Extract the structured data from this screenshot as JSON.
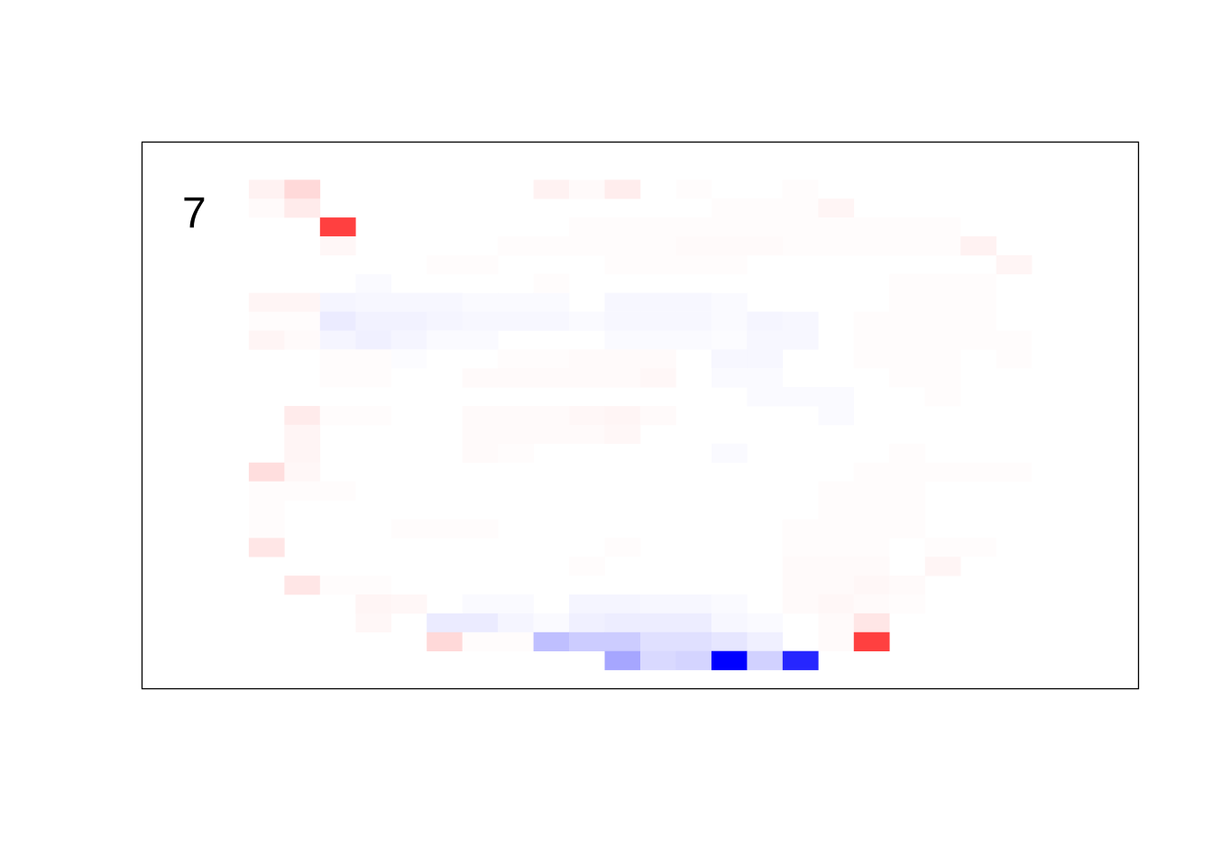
{
  "chart_data": {
    "type": "heatmap",
    "panel_label": "7",
    "n_cols": 28,
    "n_rows": 29,
    "value_range": [
      -1,
      1
    ],
    "colors": {
      "negative": "#0000ff",
      "zero": "#ffffff",
      "positive": "#ff0000"
    },
    "grid": false,
    "cells": [
      [
        3,
        2,
        0.05
      ],
      [
        4,
        2,
        0.15
      ],
      [
        11,
        2,
        0.05
      ],
      [
        12,
        2,
        0.02
      ],
      [
        13,
        2,
        0.07
      ],
      [
        15,
        2,
        0.01
      ],
      [
        18,
        2,
        0.01
      ],
      [
        3,
        3,
        0.02
      ],
      [
        4,
        3,
        0.08
      ],
      [
        16,
        3,
        0.01
      ],
      [
        17,
        3,
        0.01
      ],
      [
        18,
        3,
        0.01
      ],
      [
        19,
        3,
        0.04
      ],
      [
        5,
        4,
        0.75
      ],
      [
        12,
        4,
        0.01
      ],
      [
        13,
        4,
        0.01
      ],
      [
        14,
        4,
        0.01
      ],
      [
        15,
        4,
        0.01
      ],
      [
        16,
        4,
        0.01
      ],
      [
        17,
        4,
        0.01
      ],
      [
        18,
        4,
        0.01
      ],
      [
        19,
        4,
        0.01
      ],
      [
        20,
        4,
        0.01
      ],
      [
        21,
        4,
        0.01
      ],
      [
        22,
        4,
        0.01
      ],
      [
        5,
        5,
        0.03
      ],
      [
        10,
        5,
        0.01
      ],
      [
        11,
        5,
        0.01
      ],
      [
        12,
        5,
        0.01
      ],
      [
        13,
        5,
        0.01
      ],
      [
        14,
        5,
        0.01
      ],
      [
        15,
        5,
        0.02
      ],
      [
        16,
        5,
        0.02
      ],
      [
        17,
        5,
        0.02
      ],
      [
        18,
        5,
        0.01
      ],
      [
        19,
        5,
        0.01
      ],
      [
        20,
        5,
        0.01
      ],
      [
        21,
        5,
        0.01
      ],
      [
        22,
        5,
        0.01
      ],
      [
        23,
        5,
        0.05
      ],
      [
        8,
        6,
        0.01
      ],
      [
        9,
        6,
        0.01
      ],
      [
        13,
        6,
        0.01
      ],
      [
        14,
        6,
        0.01
      ],
      [
        15,
        6,
        0.01
      ],
      [
        16,
        6,
        0.01
      ],
      [
        24,
        6,
        0.04
      ],
      [
        6,
        7,
        -0.02
      ],
      [
        11,
        7,
        0.01
      ],
      [
        21,
        7,
        0.01
      ],
      [
        22,
        7,
        0.01
      ],
      [
        23,
        7,
        0.01
      ],
      [
        3,
        8,
        0.04
      ],
      [
        4,
        8,
        0.04
      ],
      [
        5,
        8,
        -0.04
      ],
      [
        6,
        8,
        -0.03
      ],
      [
        7,
        8,
        -0.03
      ],
      [
        8,
        8,
        -0.03
      ],
      [
        9,
        8,
        -0.02
      ],
      [
        10,
        8,
        -0.02
      ],
      [
        11,
        8,
        -0.02
      ],
      [
        13,
        8,
        -0.03
      ],
      [
        14,
        8,
        -0.03
      ],
      [
        15,
        8,
        -0.03
      ],
      [
        16,
        8,
        -0.02
      ],
      [
        21,
        8,
        0.01
      ],
      [
        22,
        8,
        0.01
      ],
      [
        23,
        8,
        0.01
      ],
      [
        3,
        9,
        0.01
      ],
      [
        4,
        9,
        0.01
      ],
      [
        5,
        9,
        -0.08
      ],
      [
        6,
        9,
        -0.05
      ],
      [
        7,
        9,
        -0.05
      ],
      [
        8,
        9,
        -0.04
      ],
      [
        9,
        9,
        -0.03
      ],
      [
        10,
        9,
        -0.03
      ],
      [
        11,
        9,
        -0.03
      ],
      [
        12,
        9,
        -0.02
      ],
      [
        13,
        9,
        -0.03
      ],
      [
        14,
        9,
        -0.03
      ],
      [
        15,
        9,
        -0.03
      ],
      [
        16,
        9,
        -0.02
      ],
      [
        17,
        9,
        -0.04
      ],
      [
        18,
        9,
        -0.03
      ],
      [
        20,
        9,
        0.01
      ],
      [
        21,
        9,
        0.01
      ],
      [
        22,
        9,
        0.01
      ],
      [
        23,
        9,
        0.01
      ],
      [
        3,
        10,
        0.04
      ],
      [
        4,
        10,
        0.02
      ],
      [
        5,
        10,
        -0.04
      ],
      [
        6,
        10,
        -0.06
      ],
      [
        7,
        10,
        -0.04
      ],
      [
        8,
        10,
        -0.02
      ],
      [
        9,
        10,
        -0.02
      ],
      [
        13,
        10,
        -0.02
      ],
      [
        14,
        10,
        -0.02
      ],
      [
        15,
        10,
        -0.02
      ],
      [
        16,
        10,
        -0.01
      ],
      [
        17,
        10,
        -0.03
      ],
      [
        18,
        10,
        -0.03
      ],
      [
        20,
        10,
        0.01
      ],
      [
        21,
        10,
        0.01
      ],
      [
        22,
        10,
        0.01
      ],
      [
        23,
        10,
        0.01
      ],
      [
        24,
        10,
        0.01
      ],
      [
        5,
        11,
        0.01
      ],
      [
        6,
        11,
        0.01
      ],
      [
        7,
        11,
        -0.01
      ],
      [
        10,
        11,
        0.01
      ],
      [
        11,
        11,
        0.01
      ],
      [
        12,
        11,
        0.02
      ],
      [
        13,
        11,
        0.02
      ],
      [
        14,
        11,
        0.02
      ],
      [
        16,
        11,
        -0.03
      ],
      [
        17,
        11,
        -0.03
      ],
      [
        20,
        11,
        0.01
      ],
      [
        21,
        11,
        0.01
      ],
      [
        22,
        11,
        0.01
      ],
      [
        24,
        11,
        0.01
      ],
      [
        5,
        12,
        0.01
      ],
      [
        6,
        12,
        0.01
      ],
      [
        9,
        12,
        0.02
      ],
      [
        10,
        12,
        0.02
      ],
      [
        11,
        12,
        0.02
      ],
      [
        12,
        12,
        0.02
      ],
      [
        13,
        12,
        0.02
      ],
      [
        14,
        12,
        0.03
      ],
      [
        16,
        12,
        -0.02
      ],
      [
        17,
        12,
        -0.02
      ],
      [
        21,
        12,
        0.01
      ],
      [
        22,
        12,
        0.01
      ],
      [
        17,
        13,
        -0.02
      ],
      [
        18,
        13,
        -0.02
      ],
      [
        19,
        13,
        -0.02
      ],
      [
        22,
        13,
        0.01
      ],
      [
        4,
        14,
        0.08
      ],
      [
        5,
        14,
        0.01
      ],
      [
        6,
        14,
        0.01
      ],
      [
        9,
        14,
        0.02
      ],
      [
        10,
        14,
        0.02
      ],
      [
        11,
        14,
        0.02
      ],
      [
        12,
        14,
        0.03
      ],
      [
        13,
        14,
        0.04
      ],
      [
        14,
        14,
        0.02
      ],
      [
        19,
        14,
        -0.02
      ],
      [
        4,
        15,
        0.04
      ],
      [
        9,
        15,
        0.02
      ],
      [
        10,
        15,
        0.02
      ],
      [
        11,
        15,
        0.02
      ],
      [
        12,
        15,
        0.02
      ],
      [
        13,
        15,
        0.03
      ],
      [
        4,
        16,
        0.04
      ],
      [
        9,
        16,
        0.02
      ],
      [
        10,
        16,
        0.01
      ],
      [
        16,
        16,
        -0.02
      ],
      [
        21,
        16,
        0.01
      ],
      [
        3,
        17,
        0.13
      ],
      [
        4,
        17,
        0.03
      ],
      [
        20,
        17,
        0.01
      ],
      [
        21,
        17,
        0.01
      ],
      [
        22,
        17,
        0.01
      ],
      [
        23,
        17,
        0.01
      ],
      [
        24,
        17,
        0.01
      ],
      [
        3,
        18,
        0.01
      ],
      [
        4,
        18,
        0.01
      ],
      [
        5,
        18,
        0.01
      ],
      [
        19,
        18,
        0.01
      ],
      [
        20,
        18,
        0.01
      ],
      [
        21,
        18,
        0.01
      ],
      [
        3,
        19,
        0.01
      ],
      [
        19,
        19,
        0.01
      ],
      [
        20,
        19,
        0.01
      ],
      [
        21,
        19,
        0.01
      ],
      [
        3,
        20,
        0.01
      ],
      [
        7,
        20,
        0.01
      ],
      [
        8,
        20,
        0.01
      ],
      [
        9,
        20,
        0.01
      ],
      [
        18,
        20,
        0.01
      ],
      [
        19,
        20,
        0.01
      ],
      [
        20,
        20,
        0.01
      ],
      [
        21,
        20,
        0.01
      ],
      [
        3,
        21,
        0.1
      ],
      [
        13,
        21,
        0.01
      ],
      [
        18,
        21,
        0.01
      ],
      [
        19,
        21,
        0.01
      ],
      [
        20,
        21,
        0.01
      ],
      [
        22,
        21,
        0.01
      ],
      [
        23,
        21,
        0.01
      ],
      [
        12,
        22,
        0.01
      ],
      [
        18,
        22,
        0.02
      ],
      [
        19,
        22,
        0.02
      ],
      [
        20,
        22,
        0.02
      ],
      [
        22,
        22,
        0.04
      ],
      [
        4,
        23,
        0.1
      ],
      [
        5,
        23,
        0.01
      ],
      [
        6,
        23,
        0.01
      ],
      [
        18,
        23,
        0.02
      ],
      [
        19,
        23,
        0.02
      ],
      [
        20,
        23,
        0.03
      ],
      [
        21,
        23,
        0.02
      ],
      [
        6,
        24,
        0.04
      ],
      [
        7,
        24,
        0.03
      ],
      [
        9,
        24,
        -0.02
      ],
      [
        10,
        24,
        -0.02
      ],
      [
        12,
        24,
        -0.04
      ],
      [
        13,
        24,
        -0.04
      ],
      [
        14,
        24,
        -0.03
      ],
      [
        15,
        24,
        -0.03
      ],
      [
        16,
        24,
        -0.02
      ],
      [
        18,
        24,
        0.02
      ],
      [
        19,
        24,
        0.03
      ],
      [
        20,
        24,
        0.02
      ],
      [
        21,
        24,
        0.01
      ],
      [
        6,
        25,
        0.03
      ],
      [
        8,
        25,
        -0.08
      ],
      [
        9,
        25,
        -0.08
      ],
      [
        10,
        25,
        -0.04
      ],
      [
        11,
        25,
        -0.02
      ],
      [
        12,
        25,
        -0.06
      ],
      [
        13,
        25,
        -0.07
      ],
      [
        14,
        25,
        -0.07
      ],
      [
        15,
        25,
        -0.07
      ],
      [
        16,
        25,
        -0.03
      ],
      [
        17,
        25,
        -0.02
      ],
      [
        19,
        25,
        0.02
      ],
      [
        20,
        25,
        0.1
      ],
      [
        8,
        26,
        0.15
      ],
      [
        9,
        26,
        0.01
      ],
      [
        10,
        26,
        0.01
      ],
      [
        11,
        26,
        -0.25
      ],
      [
        12,
        26,
        -0.2
      ],
      [
        13,
        26,
        -0.2
      ],
      [
        14,
        26,
        -0.12
      ],
      [
        15,
        26,
        -0.12
      ],
      [
        16,
        26,
        -0.1
      ],
      [
        17,
        26,
        -0.06
      ],
      [
        19,
        26,
        0.02
      ],
      [
        20,
        26,
        0.75
      ],
      [
        13,
        27,
        -0.35
      ],
      [
        14,
        27,
        -0.15
      ],
      [
        15,
        27,
        -0.17
      ],
      [
        16,
        27,
        -1.0
      ],
      [
        17,
        27,
        -0.18
      ],
      [
        18,
        27,
        -0.85
      ]
    ]
  }
}
